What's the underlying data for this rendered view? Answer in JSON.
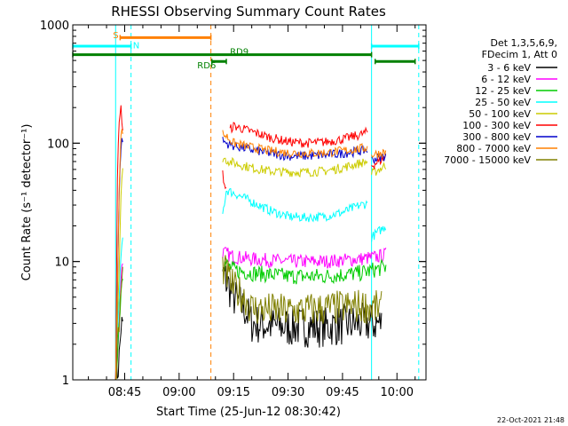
{
  "chart_data": {
    "type": "line",
    "title": "RHESSI Observing Summary Count Rates",
    "xlabel": "Start Time (25-Jun-12 08:30:42)",
    "ylabel": "Count Rate (s⁻¹ detector⁻¹)",
    "y_scale": "log",
    "ylim": [
      1,
      1000
    ],
    "xlim": [
      "08:30:42",
      "10:08:00"
    ],
    "x_ticks": [
      "08:45",
      "09:00",
      "09:15",
      "09:30",
      "09:45",
      "10:00"
    ],
    "y_ticks": [
      "1",
      "10",
      "100",
      "1000"
    ],
    "timestamp": "22-Oct-2021 21:48",
    "legend": {
      "position": "top-right",
      "header": [
        "Det 1,3,5,6,9,",
        "FDecim 1, Att 0"
      ]
    },
    "series": [
      {
        "name": "3 - 6 keV",
        "color": "#000000",
        "segments": [
          {
            "x": [
              "08:42:30",
              "08:43:30",
              "08:44:00",
              "08:44:30"
            ],
            "y": [
              1.0,
              1.5,
              3.0,
              2.5
            ]
          },
          {
            "x": [
              "09:12:00",
              "09:15:00",
              "09:18:00",
              "09:20:00",
              "09:30:00",
              "09:40:00",
              "09:50:00",
              "09:56:00"
            ],
            "y": [
              8.0,
              5.0,
              4.0,
              3.0,
              2.8,
              2.8,
              3.0,
              3.0
            ]
          }
        ]
      },
      {
        "name": "6 - 12 keV",
        "color": "#ff00ff",
        "segments": [
          {
            "x": [
              "08:42:30",
              "08:43:30",
              "08:44:00",
              "08:44:30"
            ],
            "y": [
              1.0,
              3.0,
              8.0,
              10.0
            ]
          },
          {
            "x": [
              "09:12:00",
              "09:15:00",
              "09:20:00",
              "09:30:00",
              "09:40:00",
              "09:50:00",
              "09:55:00",
              "09:57:00"
            ],
            "y": [
              12.0,
              11.0,
              10.5,
              10.0,
              10.0,
              10.5,
              11.0,
              11.5
            ]
          }
        ]
      },
      {
        "name": "12 - 25 keV",
        "color": "#00cc00",
        "segments": [
          {
            "x": [
              "08:42:30",
              "08:43:30",
              "08:44:00",
              "08:44:30"
            ],
            "y": [
              1.0,
              3.0,
              6.0,
              8.0
            ]
          },
          {
            "x": [
              "09:12:00",
              "09:15:00",
              "09:20:00",
              "09:30:00",
              "09:40:00",
              "09:50:00",
              "09:57:00"
            ],
            "y": [
              10.0,
              8.5,
              8.0,
              7.5,
              7.5,
              8.0,
              9.0
            ]
          }
        ]
      },
      {
        "name": "25 - 50 keV",
        "color": "#00ffff",
        "segments": [
          {
            "x": [
              "08:42:30",
              "08:43:30",
              "08:44:00",
              "08:44:30"
            ],
            "y": [
              1.0,
              5.0,
              12.0,
              15.0
            ]
          },
          {
            "x": [
              "09:12:00",
              "09:13:00",
              "09:15:00",
              "09:20:00",
              "09:25:00",
              "09:30:00",
              "09:35:00",
              "09:40:00",
              "09:45:00",
              "09:50:00",
              "09:52:00"
            ],
            "y": [
              25.0,
              40.0,
              38.0,
              32.0,
              27.0,
              24.0,
              23.5,
              24.0,
              26.0,
              30.0,
              31.0
            ]
          },
          {
            "x": [
              "09:53:00",
              "09:55:00",
              "09:57:00"
            ],
            "y": [
              16.0,
              18.0,
              20.0
            ]
          }
        ]
      },
      {
        "name": "50 - 100 keV",
        "color": "#cccc00",
        "segments": [
          {
            "x": [
              "08:42:30",
              "08:43:30",
              "08:44:00",
              "08:44:30"
            ],
            "y": [
              1.0,
              10.0,
              40.0,
              60.0
            ]
          },
          {
            "x": [
              "09:12:00",
              "09:13:00",
              "09:15:00",
              "09:20:00",
              "09:25:00",
              "09:30:00",
              "09:35:00",
              "09:40:00",
              "09:45:00",
              "09:50:00",
              "09:52:00"
            ],
            "y": [
              75.0,
              72.0,
              68.0,
              62.0,
              58.0,
              57.0,
              57.0,
              58.0,
              62.0,
              68.0,
              70.0
            ]
          },
          {
            "x": [
              "09:53:00",
              "09:55:00",
              "09:57:00"
            ],
            "y": [
              55.0,
              60.0,
              65.0
            ]
          }
        ]
      },
      {
        "name": "100 - 300 keV",
        "color": "#ff0000",
        "segments": [
          {
            "x": [
              "08:42:30",
              "08:43:00",
              "08:43:30",
              "08:44:00",
              "08:44:30"
            ],
            "y": [
              1.0,
              60.0,
              150.0,
              200.0,
              120.0
            ]
          },
          {
            "x": [
              "09:12:00",
              "09:12:30",
              "09:13:00"
            ],
            "y": [
              55.0,
              45.0,
              40.0
            ]
          },
          {
            "x": [
              "09:14:00",
              "09:15:00",
              "09:20:00",
              "09:25:00",
              "09:30:00",
              "09:35:00",
              "09:40:00",
              "09:45:00",
              "09:50:00",
              "09:52:00"
            ],
            "y": [
              130.0,
              140.0,
              125.0,
              112.0,
              103.0,
              100.0,
              102.0,
              108.0,
              118.0,
              125.0
            ]
          },
          {
            "x": [
              "09:53:00",
              "09:55:00",
              "09:57:00"
            ],
            "y": [
              65.0,
              70.0,
              78.0
            ]
          }
        ]
      },
      {
        "name": "300 - 800 keV",
        "color": "#0000cc",
        "segments": [
          {
            "x": [
              "08:42:30",
              "08:43:30",
              "08:44:00",
              "08:44:30"
            ],
            "y": [
              1.0,
              40.0,
              100.0,
              110.0
            ]
          },
          {
            "x": [
              "09:12:00",
              "09:13:00",
              "09:15:00",
              "09:20:00",
              "09:25:00",
              "09:30:00",
              "09:35:00",
              "09:40:00",
              "09:45:00",
              "09:50:00",
              "09:52:00"
            ],
            "y": [
              105.0,
              100.0,
              95.0,
              88.0,
              82.0,
              78.0,
              78.0,
              79.0,
              82.0,
              86.0,
              88.0
            ]
          },
          {
            "x": [
              "09:53:00",
              "09:55:00",
              "09:57:00"
            ],
            "y": [
              72.0,
              76.0,
              78.0
            ]
          }
        ]
      },
      {
        "name": "800 - 7000 keV",
        "color": "#ff8000",
        "segments": [
          {
            "x": [
              "08:42:30",
              "08:43:30",
              "08:44:00",
              "08:44:30"
            ],
            "y": [
              1.0,
              50.0,
              120.0,
              130.0
            ]
          },
          {
            "x": [
              "09:12:00",
              "09:13:00",
              "09:15:00",
              "09:20:00",
              "09:25:00",
              "09:30:00",
              "09:35:00",
              "09:40:00",
              "09:45:00",
              "09:50:00",
              "09:52:00"
            ],
            "y": [
              120.0,
              115.0,
              100.0,
              92.0,
              86.0,
              83.0,
              82.0,
              83.0,
              86.0,
              90.0,
              92.0
            ]
          },
          {
            "x": [
              "09:53:00",
              "09:55:00",
              "09:57:00"
            ],
            "y": [
              80.0,
              82.0,
              84.0
            ]
          }
        ]
      },
      {
        "name": "7000 - 15000 keV",
        "color": "#808000",
        "segments": [
          {
            "x": [
              "08:42:30",
              "08:43:30",
              "08:44:00",
              "08:44:30"
            ],
            "y": [
              1.0,
              3.0,
              6.0,
              8.0
            ]
          },
          {
            "x": [
              "09:12:00",
              "09:15:00",
              "09:18:00",
              "09:20:00",
              "09:30:00",
              "09:40:00",
              "09:50:00",
              "09:56:00"
            ],
            "y": [
              9.0,
              6.0,
              5.0,
              4.0,
              3.8,
              4.0,
              4.2,
              4.0
            ]
          }
        ]
      }
    ],
    "annotations": {
      "vlines": [
        {
          "x": "08:42:30",
          "color": "#00ffff",
          "style": "solid"
        },
        {
          "x": "08:46:45",
          "color": "#00ffff",
          "style": "dashed"
        },
        {
          "x": "09:08:45",
          "color": "#ff8000",
          "style": "dashed"
        },
        {
          "x": "09:53:00",
          "color": "#00ffff",
          "style": "solid"
        },
        {
          "x": "10:06:00",
          "color": "#00ffff",
          "style": "dashed"
        }
      ],
      "bars": [
        {
          "label": "S",
          "color": "#ff8000",
          "x0": "08:43:45",
          "x1": "09:08:45",
          "y": 780,
          "label_x": "08:41:45",
          "label_y": 830
        },
        {
          "label": "N",
          "color": "#00ffff",
          "x0": "08:30:42",
          "x1": "08:46:45",
          "y": 660,
          "label_x": "08:47:15",
          "label_y": 680
        },
        {
          "label": "",
          "color": "#00ffff",
          "x0": "09:53:00",
          "x1": "10:06:00",
          "y": 660
        },
        {
          "label": "RD9",
          "color": "#008000",
          "x0": "08:30:42",
          "x1": "09:53:00",
          "y": 560,
          "label_x": "09:14:00",
          "label_y": 600
        },
        {
          "label": "RD6",
          "color": "#008000",
          "x0": "09:09:00",
          "x1": "09:13:00",
          "y": 490,
          "label_x": "09:05:00",
          "label_y": 460
        },
        {
          "label": "",
          "color": "#008000",
          "x0": "09:54:00",
          "x1": "10:05:00",
          "y": 490
        }
      ]
    }
  }
}
